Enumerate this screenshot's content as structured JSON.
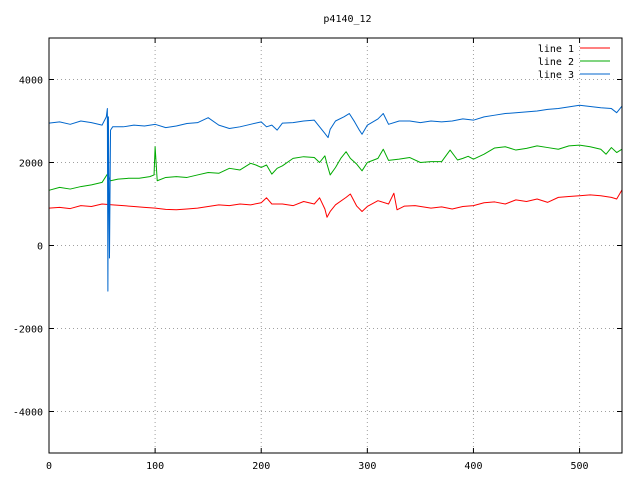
{
  "chart_data": {
    "type": "line",
    "title": "p4140_12",
    "xlabel": "",
    "ylabel": "",
    "xlim": [
      0,
      540
    ],
    "ylim": [
      -5000,
      5000
    ],
    "x_ticks": [
      0,
      100,
      200,
      300,
      400,
      500
    ],
    "y_ticks": [
      -4000,
      -2000,
      0,
      2000,
      4000
    ],
    "grid": true,
    "legend_position": "top-right",
    "series": [
      {
        "name": "line 1",
        "color": "#ff0000",
        "points": [
          [
            0,
            900
          ],
          [
            10,
            920
          ],
          [
            20,
            890
          ],
          [
            30,
            960
          ],
          [
            40,
            940
          ],
          [
            50,
            1000
          ],
          [
            60,
            980
          ],
          [
            70,
            960
          ],
          [
            80,
            940
          ],
          [
            90,
            920
          ],
          [
            100,
            900
          ],
          [
            110,
            870
          ],
          [
            120,
            860
          ],
          [
            130,
            880
          ],
          [
            140,
            900
          ],
          [
            150,
            940
          ],
          [
            160,
            980
          ],
          [
            170,
            960
          ],
          [
            180,
            1000
          ],
          [
            190,
            980
          ],
          [
            200,
            1030
          ],
          [
            205,
            1150
          ],
          [
            210,
            1000
          ],
          [
            220,
            1000
          ],
          [
            230,
            960
          ],
          [
            240,
            1060
          ],
          [
            250,
            1000
          ],
          [
            255,
            1150
          ],
          [
            260,
            880
          ],
          [
            262,
            680
          ],
          [
            265,
            820
          ],
          [
            270,
            980
          ],
          [
            280,
            1160
          ],
          [
            284,
            1240
          ],
          [
            290,
            950
          ],
          [
            295,
            820
          ],
          [
            300,
            940
          ],
          [
            310,
            1080
          ],
          [
            320,
            1000
          ],
          [
            325,
            1260
          ],
          [
            328,
            860
          ],
          [
            335,
            950
          ],
          [
            345,
            960
          ],
          [
            360,
            900
          ],
          [
            370,
            930
          ],
          [
            380,
            880
          ],
          [
            390,
            940
          ],
          [
            400,
            960
          ],
          [
            410,
            1030
          ],
          [
            420,
            1050
          ],
          [
            430,
            1000
          ],
          [
            440,
            1100
          ],
          [
            450,
            1060
          ],
          [
            460,
            1120
          ],
          [
            470,
            1040
          ],
          [
            480,
            1160
          ],
          [
            490,
            1180
          ],
          [
            500,
            1200
          ],
          [
            510,
            1220
          ],
          [
            520,
            1200
          ],
          [
            530,
            1160
          ],
          [
            535,
            1120
          ],
          [
            540,
            1340
          ]
        ]
      },
      {
        "name": "line 2",
        "color": "#00aa00",
        "points": [
          [
            0,
            1330
          ],
          [
            10,
            1400
          ],
          [
            20,
            1360
          ],
          [
            30,
            1420
          ],
          [
            40,
            1460
          ],
          [
            50,
            1520
          ],
          [
            55,
            1720
          ],
          [
            58,
            1560
          ],
          [
            65,
            1600
          ],
          [
            75,
            1620
          ],
          [
            85,
            1620
          ],
          [
            95,
            1660
          ],
          [
            99,
            1700
          ],
          [
            100,
            2380
          ],
          [
            102,
            1560
          ],
          [
            110,
            1640
          ],
          [
            120,
            1660
          ],
          [
            130,
            1640
          ],
          [
            140,
            1700
          ],
          [
            150,
            1760
          ],
          [
            160,
            1740
          ],
          [
            170,
            1860
          ],
          [
            180,
            1820
          ],
          [
            190,
            1980
          ],
          [
            195,
            1940
          ],
          [
            200,
            1880
          ],
          [
            205,
            1940
          ],
          [
            210,
            1720
          ],
          [
            215,
            1860
          ],
          [
            220,
            1920
          ],
          [
            230,
            2100
          ],
          [
            240,
            2140
          ],
          [
            250,
            2120
          ],
          [
            255,
            2000
          ],
          [
            260,
            2160
          ],
          [
            262,
            1960
          ],
          [
            265,
            1700
          ],
          [
            270,
            1880
          ],
          [
            275,
            2100
          ],
          [
            280,
            2260
          ],
          [
            284,
            2100
          ],
          [
            290,
            1960
          ],
          [
            295,
            1800
          ],
          [
            300,
            2000
          ],
          [
            310,
            2100
          ],
          [
            315,
            2320
          ],
          [
            320,
            2050
          ],
          [
            330,
            2080
          ],
          [
            340,
            2120
          ],
          [
            350,
            2000
          ],
          [
            360,
            2020
          ],
          [
            370,
            2020
          ],
          [
            378,
            2300
          ],
          [
            385,
            2060
          ],
          [
            390,
            2100
          ],
          [
            395,
            2150
          ],
          [
            400,
            2080
          ],
          [
            410,
            2200
          ],
          [
            420,
            2350
          ],
          [
            430,
            2380
          ],
          [
            440,
            2300
          ],
          [
            450,
            2340
          ],
          [
            460,
            2400
          ],
          [
            470,
            2360
          ],
          [
            480,
            2320
          ],
          [
            490,
            2400
          ],
          [
            500,
            2420
          ],
          [
            510,
            2380
          ],
          [
            520,
            2320
          ],
          [
            525,
            2200
          ],
          [
            530,
            2360
          ],
          [
            535,
            2240
          ],
          [
            540,
            2320
          ]
        ]
      },
      {
        "name": "line 3",
        "color": "#0066cc",
        "points": [
          [
            0,
            2950
          ],
          [
            10,
            2980
          ],
          [
            20,
            2920
          ],
          [
            30,
            3000
          ],
          [
            40,
            2960
          ],
          [
            50,
            2900
          ],
          [
            54,
            3100
          ],
          [
            55,
            3300
          ],
          [
            55.5,
            -1100
          ],
          [
            56,
            3100
          ],
          [
            57,
            -300
          ],
          [
            58,
            2780
          ],
          [
            60,
            2860
          ],
          [
            70,
            2860
          ],
          [
            80,
            2900
          ],
          [
            90,
            2880
          ],
          [
            100,
            2920
          ],
          [
            110,
            2840
          ],
          [
            120,
            2880
          ],
          [
            130,
            2940
          ],
          [
            140,
            2960
          ],
          [
            150,
            3080
          ],
          [
            160,
            2900
          ],
          [
            170,
            2820
          ],
          [
            180,
            2860
          ],
          [
            190,
            2920
          ],
          [
            200,
            2980
          ],
          [
            205,
            2860
          ],
          [
            210,
            2900
          ],
          [
            215,
            2780
          ],
          [
            220,
            2950
          ],
          [
            230,
            2960
          ],
          [
            240,
            3000
          ],
          [
            250,
            3020
          ],
          [
            255,
            2860
          ],
          [
            260,
            2700
          ],
          [
            263,
            2600
          ],
          [
            265,
            2800
          ],
          [
            270,
            3000
          ],
          [
            278,
            3100
          ],
          [
            283,
            3180
          ],
          [
            288,
            2980
          ],
          [
            292,
            2800
          ],
          [
            295,
            2680
          ],
          [
            300,
            2900
          ],
          [
            310,
            3050
          ],
          [
            315,
            3180
          ],
          [
            320,
            2920
          ],
          [
            330,
            3000
          ],
          [
            340,
            3000
          ],
          [
            350,
            2960
          ],
          [
            360,
            3000
          ],
          [
            370,
            2980
          ],
          [
            380,
            3000
          ],
          [
            390,
            3050
          ],
          [
            400,
            3020
          ],
          [
            410,
            3100
          ],
          [
            420,
            3140
          ],
          [
            430,
            3180
          ],
          [
            440,
            3200
          ],
          [
            450,
            3220
          ],
          [
            460,
            3240
          ],
          [
            470,
            3280
          ],
          [
            480,
            3300
          ],
          [
            490,
            3340
          ],
          [
            500,
            3380
          ],
          [
            510,
            3350
          ],
          [
            520,
            3320
          ],
          [
            530,
            3300
          ],
          [
            535,
            3200
          ],
          [
            540,
            3360
          ]
        ]
      }
    ]
  }
}
